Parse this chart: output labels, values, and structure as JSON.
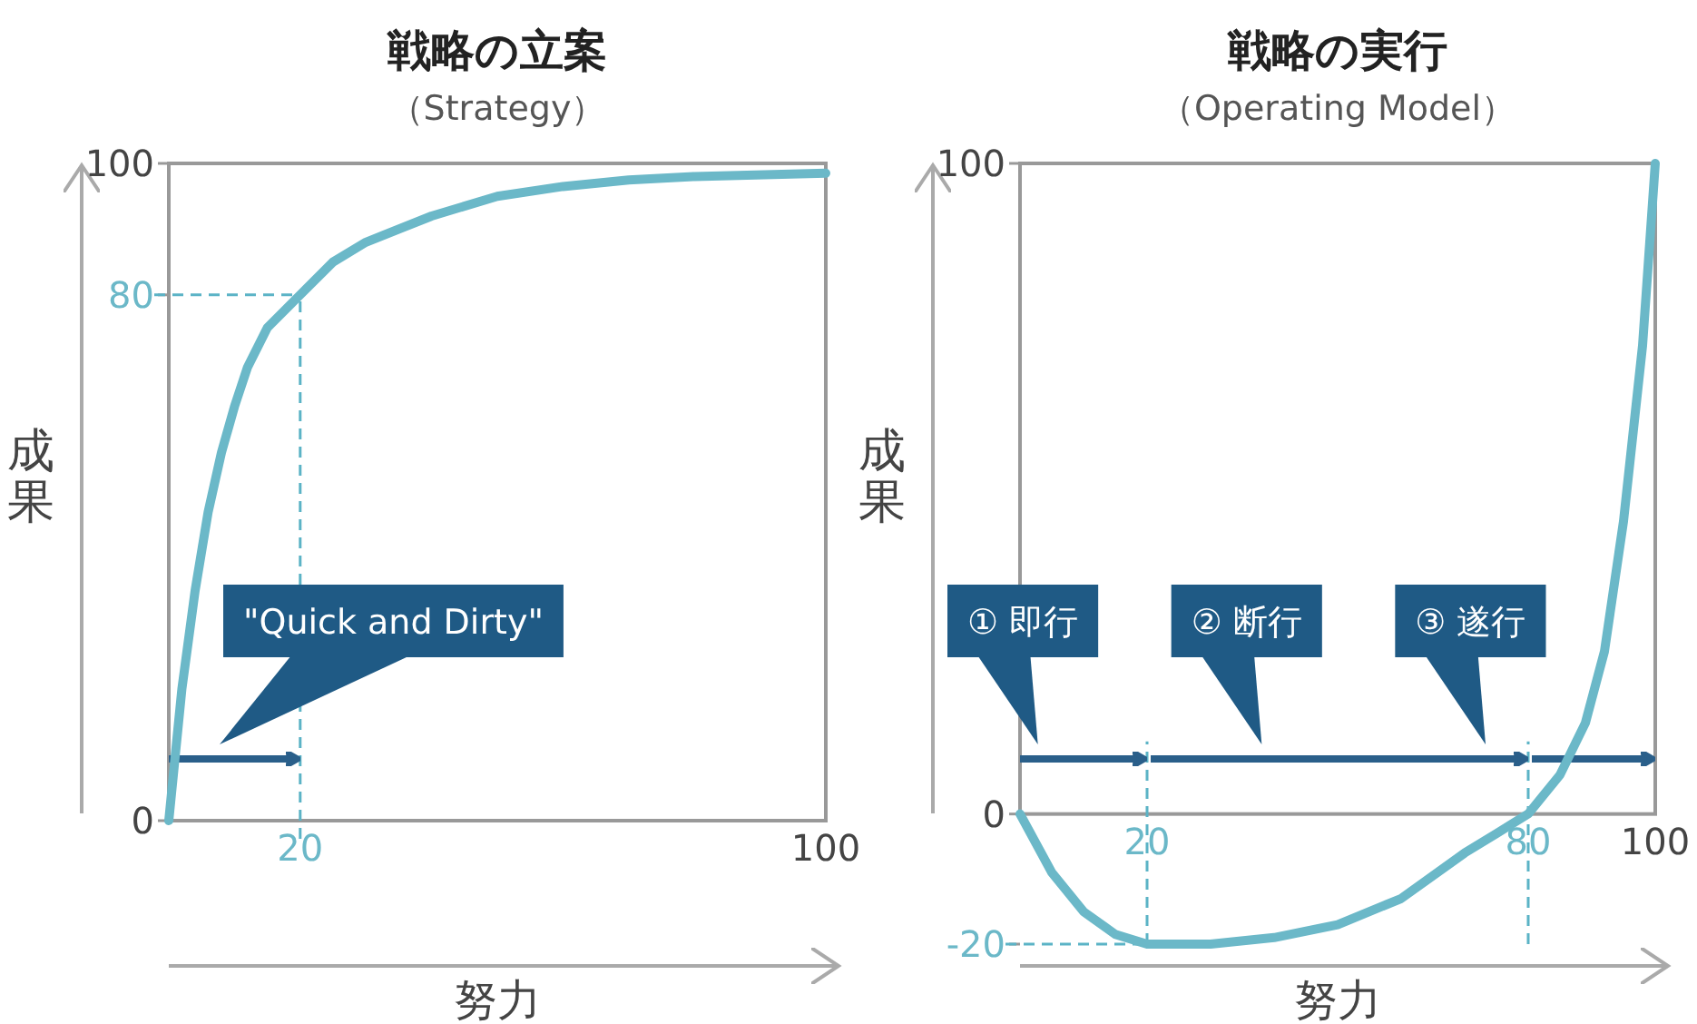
{
  "chart_data": [
    {
      "type": "line",
      "title": "戦略の立案",
      "subtitle": "（Strategy）",
      "xlabel": "努力",
      "ylabel": "成果",
      "xlim": [
        0,
        100
      ],
      "ylim": [
        0,
        100
      ],
      "xticks": [
        20,
        100
      ],
      "yticks": [
        0,
        80,
        100
      ],
      "line_style": "solid",
      "series": [
        {
          "color": "#6bb8c8",
          "x": [
            0,
            1,
            2,
            4,
            6,
            8,
            10,
            12,
            15,
            20,
            25,
            30,
            40,
            50,
            60,
            70,
            80,
            100
          ],
          "values": [
            0,
            10,
            20,
            35,
            47,
            56,
            63,
            69,
            75,
            80,
            85,
            88,
            92,
            95,
            96.5,
            97.5,
            98,
            98.5
          ]
        }
      ],
      "ref_lines": [
        {
          "axis": "x",
          "value": 20,
          "color": "#5bb3c6",
          "line_style": "dashed"
        },
        {
          "axis": "y",
          "value": 80,
          "color": "#5bb3c6",
          "line_style": "dashed"
        }
      ],
      "annotations": [
        "\"Quick and Dirty\""
      ]
    },
    {
      "type": "line",
      "title": "戦略の実行",
      "subtitle": "（Operating Model）",
      "xlabel": "努力",
      "ylabel": "成果",
      "xlim": [
        0,
        100
      ],
      "ylim": [
        -20,
        100
      ],
      "xticks": [
        20,
        80,
        100
      ],
      "yticks": [
        -20,
        0,
        100
      ],
      "line_style": "solid",
      "series": [
        {
          "color": "#6bb8c8",
          "x": [
            0,
            5,
            10,
            15,
            20,
            30,
            40,
            50,
            60,
            70,
            75,
            80,
            85,
            89,
            92,
            95,
            98,
            100
          ],
          "values": [
            0,
            -9,
            -15,
            -18.5,
            -20,
            -20,
            -19,
            -17,
            -13,
            -6,
            -3,
            0,
            6,
            14,
            25,
            45,
            72,
            100
          ]
        }
      ],
      "ref_lines": [
        {
          "axis": "x",
          "value": 20,
          "color": "#5bb3c6",
          "line_style": "dashed"
        },
        {
          "axis": "y",
          "value": -20,
          "color": "#5bb3c6",
          "line_style": "dashed"
        },
        {
          "axis": "x",
          "value": 80,
          "color": "#5bb3c6",
          "line_style": "dashed"
        }
      ],
      "annotations": [
        "① 即行",
        "② 断行",
        "③ 遂行"
      ]
    }
  ]
}
